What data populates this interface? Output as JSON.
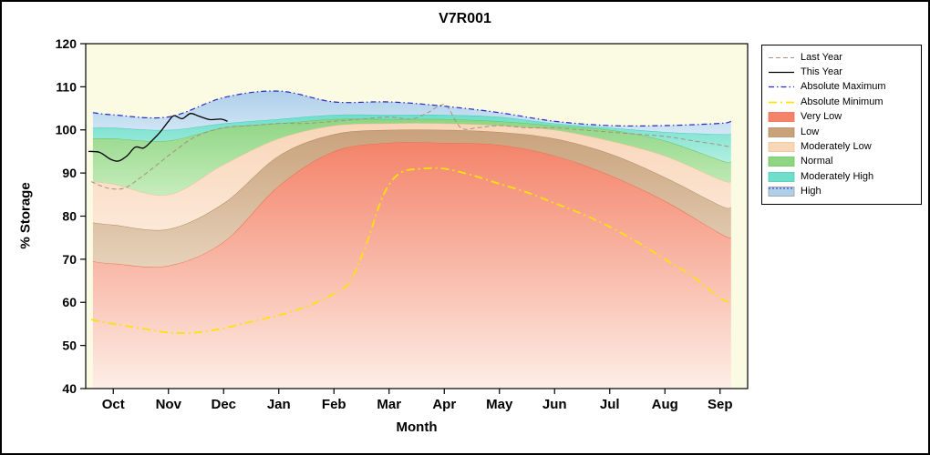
{
  "chart_data": {
    "type": "area",
    "title": "V7R001",
    "xlabel": "Month",
    "ylabel": "% Storage",
    "ylim": [
      40,
      120
    ],
    "yticks": [
      40,
      50,
      60,
      70,
      80,
      90,
      100,
      110,
      120
    ],
    "months": [
      "Oct",
      "Nov",
      "Dec",
      "Jan",
      "Feb",
      "Mar",
      "Apr",
      "May",
      "Jun",
      "Jul",
      "Aug",
      "Sep"
    ],
    "legend_position": "top-right-outside",
    "grid": false,
    "colors": {
      "plot_bg": "#fbfbe4",
      "frame": "#000000"
    },
    "band_x": [
      -0.37,
      0,
      1,
      2,
      3,
      4,
      5,
      6,
      7,
      8,
      9,
      10,
      11,
      11.2
    ],
    "bands": [
      {
        "name": "Very Low",
        "fill": [
          "#f4836a",
          "#fdeee6"
        ],
        "edge": "#ea6f4e",
        "upper": [
          69.5,
          69,
          68.5,
          74,
          87,
          95,
          97,
          97,
          96.5,
          94,
          89.5,
          83.5,
          76,
          75
        ]
      },
      {
        "name": "Low",
        "fill": [
          "#c9a27c",
          "#e6d2ba"
        ],
        "edge": "#b08a60",
        "upper": [
          78.5,
          78,
          77,
          83,
          94,
          99,
          100,
          100,
          99.5,
          98,
          94.5,
          89,
          82.5,
          82
        ]
      },
      {
        "name": "Moderately Low",
        "fill": [
          "#f8d6b8",
          "#fce8d8"
        ],
        "edge": "#eec096",
        "upper": [
          88,
          87.5,
          85,
          92,
          98,
          101,
          101.5,
          101.5,
          101,
          100,
          97.5,
          94,
          88.5,
          88
        ]
      },
      {
        "name": "Normal",
        "fill": [
          "#8fd584",
          "#c6edbc"
        ],
        "edge": "#66c35e",
        "upper": [
          98,
          98,
          97.5,
          100.5,
          101.5,
          102.5,
          102.5,
          102.5,
          102,
          101,
          100,
          97.5,
          93,
          92.5
        ]
      },
      {
        "name": "Moderately High",
        "fill": [
          "#6fdecb",
          "#b2efe2"
        ],
        "edge": "#44cdb6",
        "upper": [
          100.5,
          100.5,
          100,
          101.5,
          102.5,
          103.5,
          103.5,
          103.5,
          103,
          101.5,
          100.5,
          99.5,
          99,
          99
        ]
      },
      {
        "name": "High",
        "fill": [
          "#aecfe9",
          "#d3e7f6"
        ],
        "swatch_line": {
          "color": "#2929c8",
          "dash": "2,2"
        },
        "upper": [
          104,
          103.5,
          103,
          107.5,
          109,
          106.5,
          106.5,
          105.5,
          104,
          102,
          101,
          101,
          101.5,
          102
        ]
      }
    ],
    "lines": [
      {
        "name": "Last Year",
        "color": "#a8907c",
        "width": 1,
        "dash": "5,3",
        "x": [
          -0.4,
          -0.1,
          0.2,
          0.5,
          0.8,
          1.1,
          1.5,
          2,
          2.5,
          3,
          3.5,
          4,
          4.5,
          5,
          5.4,
          5.7,
          5.9,
          6.05,
          6.3,
          6.6,
          7,
          7.5,
          8,
          8.5,
          9,
          9.5,
          10,
          10.5,
          11,
          11.2
        ],
        "y": [
          88,
          86.5,
          86.5,
          89,
          92,
          95,
          98.5,
          100.5,
          101,
          101.5,
          101.5,
          102,
          102.5,
          103,
          102.5,
          104,
          105.5,
          105.5,
          100.5,
          100.5,
          101,
          100.5,
          100.5,
          100,
          99.5,
          99,
          98.5,
          97.5,
          96.5,
          96
        ]
      },
      {
        "name": "This Year",
        "color": "#000000",
        "width": 1.3,
        "dash": "",
        "x": [
          -0.45,
          -0.25,
          -0.05,
          0.1,
          0.25,
          0.4,
          0.55,
          0.7,
          0.85,
          1.0,
          1.1,
          1.25,
          1.4,
          1.55,
          1.75,
          1.95,
          2.07
        ],
        "y": [
          95,
          94.8,
          93.2,
          92.8,
          94,
          96,
          95.8,
          97.5,
          99.5,
          102,
          103.3,
          102.6,
          103.8,
          103.2,
          102.4,
          102.5,
          102
        ]
      },
      {
        "name": "Absolute Maximum",
        "color": "#2929c8",
        "width": 1.2,
        "dash": "6,3,1.5,3",
        "x": [
          -0.37,
          0,
          1,
          2,
          3,
          4,
          5,
          6,
          7,
          8,
          9,
          10,
          11,
          11.2
        ],
        "y": [
          104,
          103.5,
          103,
          107.5,
          109,
          106.5,
          106.5,
          105.5,
          104,
          102,
          101,
          101,
          101.5,
          102
        ]
      },
      {
        "name": "Absolute Minimum",
        "color": "#ffe10a",
        "width": 1.8,
        "dash": "9,4,2,4",
        "x": [
          -0.4,
          0,
          0.5,
          1,
          1.5,
          2,
          2.5,
          3,
          3.5,
          4,
          4.3,
          4.6,
          4.9,
          5.2,
          5.6,
          6,
          6.5,
          7,
          7.5,
          8,
          8.5,
          9,
          9.5,
          10,
          10.5,
          11,
          11.2
        ],
        "y": [
          56,
          55,
          54,
          53,
          53,
          54,
          55.5,
          57,
          59,
          62,
          65,
          74,
          85,
          90,
          91,
          91,
          89.5,
          87.5,
          85.5,
          83,
          80.5,
          77.5,
          74,
          70,
          66,
          61,
          60
        ]
      }
    ]
  }
}
